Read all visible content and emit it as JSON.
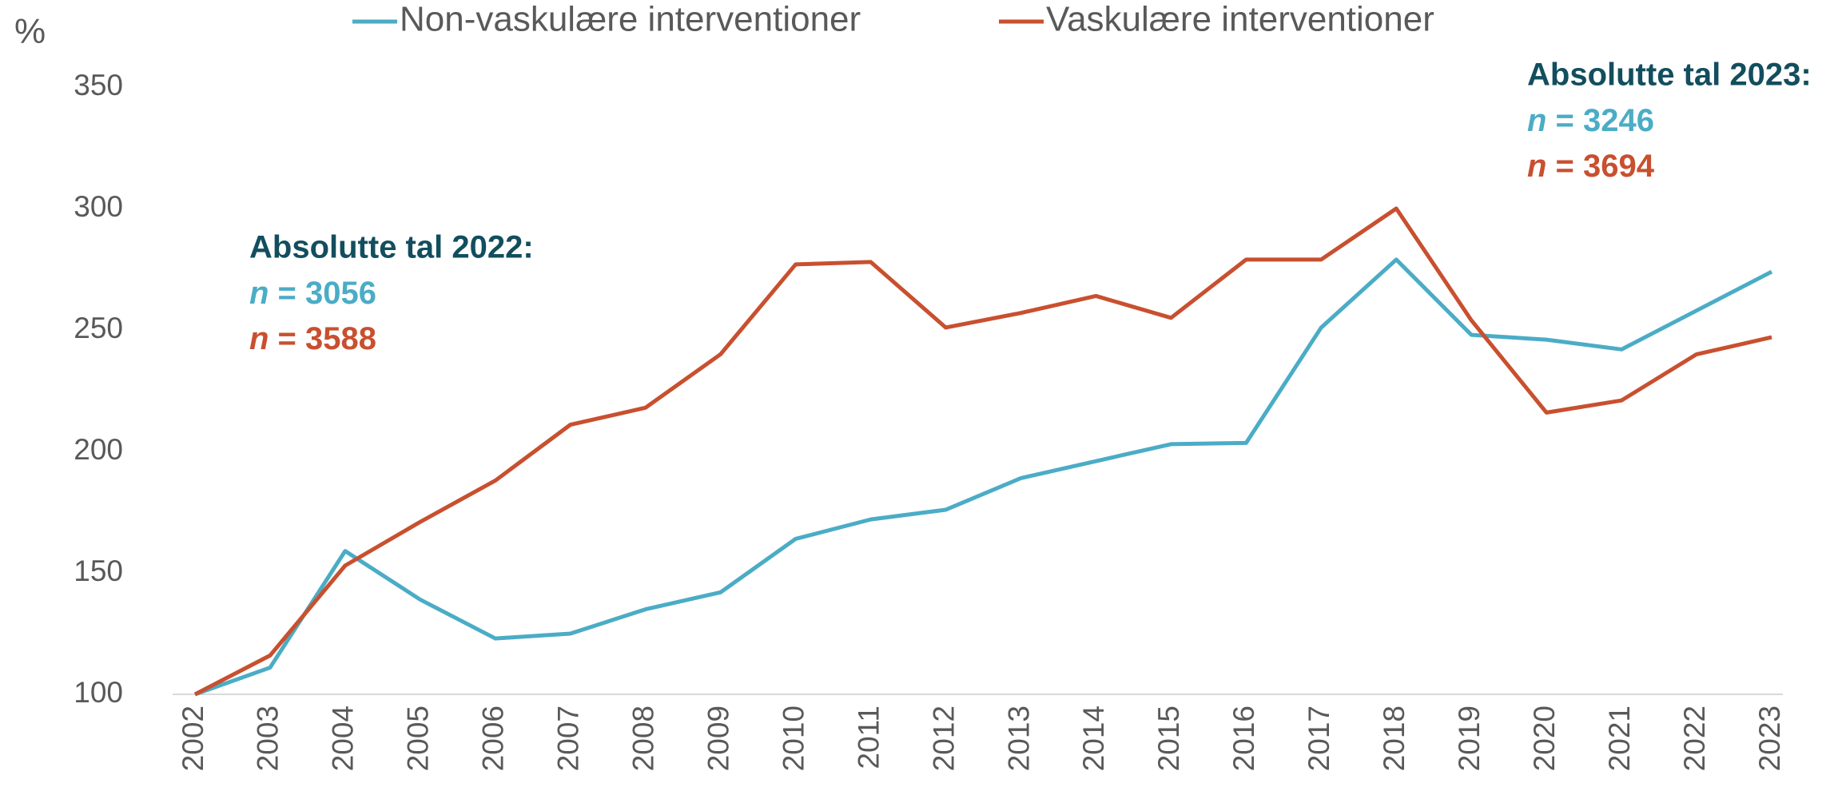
{
  "chart_data": {
    "type": "line",
    "y_label": "%",
    "categories": [
      "2002",
      "2003",
      "2004",
      "2005",
      "2006",
      "2007",
      "2008",
      "2009",
      "2010",
      "2011",
      "2012",
      "2013",
      "2014",
      "2015",
      "2016",
      "2017",
      "2018",
      "2019",
      "2020",
      "2021",
      "2022",
      "2023"
    ],
    "series": [
      {
        "name": "Non-vaskulære interventioner",
        "color": "#4bacc6",
        "values": [
          100,
          111,
          159,
          139,
          123,
          125,
          135,
          142,
          164,
          172,
          176,
          189,
          196,
          203,
          203.5,
          251,
          279,
          248,
          246,
          242,
          258,
          274
        ]
      },
      {
        "name": "Vaskulære interventioner",
        "color": "#c8502f",
        "values": [
          100,
          116,
          153,
          171,
          188,
          211,
          218,
          240,
          277,
          278,
          251,
          257,
          264,
          255,
          279,
          279,
          300,
          254,
          216,
          221,
          240,
          247
        ]
      }
    ],
    "ylim": [
      100,
      350
    ],
    "yticks": [
      100,
      150,
      200,
      250,
      300,
      350
    ],
    "grid": false,
    "annotations": [
      {
        "title": "Absolutte tal 2022:",
        "lines": [
          "n = 3056",
          "n = 3588"
        ]
      },
      {
        "title": "Absolutte tal 2023:",
        "lines": [
          "n = 3246",
          "n = 3694"
        ]
      }
    ],
    "annotation_color": "#124e5e"
  }
}
